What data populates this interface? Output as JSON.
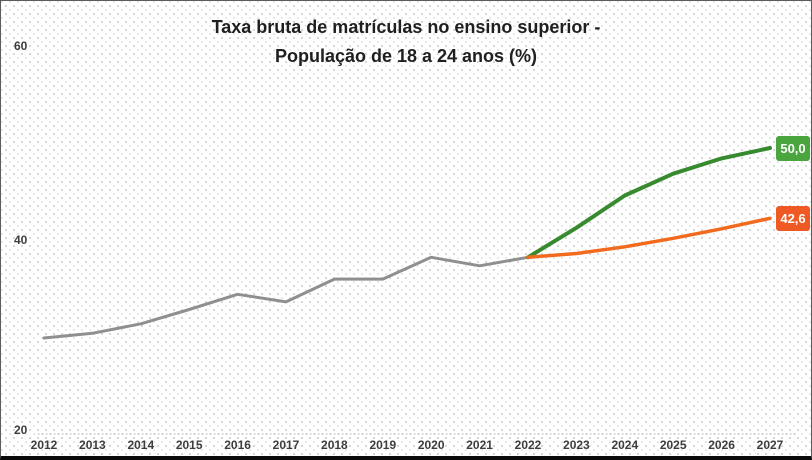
{
  "title": {
    "line1": "Taxa bruta de matrículas no ensino superior -",
    "line2": "População de 18 a 24 anos (%)"
  },
  "colors": {
    "observed_line": "#8f8f8f",
    "goal_line": "#388a2f",
    "goal_label_bg": "#4ba53f",
    "trend_line": "#f26a1e",
    "trend_label_bg": "#ef5a24",
    "baseline_dots": "#b0b0b0",
    "tick_text": "#3d3d3d",
    "title_text": "#1f1f1f"
  },
  "chart_data": {
    "type": "line",
    "title": "Taxa bruta de matrículas no ensino superior - População de 18 a 24 anos (%)",
    "xlabel": "",
    "ylabel": "",
    "x_ticks": [
      2012,
      2013,
      2014,
      2015,
      2016,
      2017,
      2018,
      2019,
      2020,
      2021,
      2022,
      2023,
      2024,
      2025,
      2026,
      2027
    ],
    "y_ticks": [
      20,
      40,
      60
    ],
    "ylim": [
      20,
      62
    ],
    "grid": "single dotted baseline at y=20 only",
    "legend_position": "none",
    "series": [
      {
        "name": "observado",
        "color": "#8f8f8f",
        "width": 3,
        "x": [
          2012,
          2013,
          2014,
          2015,
          2016,
          2017,
          2018,
          2019,
          2020,
          2021,
          2022
        ],
        "values": [
          30.0,
          30.5,
          31.5,
          33.0,
          34.6,
          33.8,
          36.2,
          36.2,
          38.5,
          37.6,
          38.5
        ],
        "end_label": null
      },
      {
        "name": "meta-50",
        "color": "#388a2f",
        "width": 4,
        "x": [
          2022,
          2023,
          2024,
          2025,
          2026,
          2027
        ],
        "values": [
          38.5,
          41.6,
          45.0,
          47.3,
          48.9,
          50.0
        ],
        "end_label": "50,0",
        "end_label_bg": "#4ba53f"
      },
      {
        "name": "projecao-tendencia",
        "color": "#f26a1e",
        "width": 3.5,
        "x": [
          2022,
          2023,
          2024,
          2025,
          2026,
          2027
        ],
        "values": [
          38.5,
          38.9,
          39.6,
          40.5,
          41.5,
          42.6
        ],
        "end_label": "42,6",
        "end_label_bg": "#ef5a24"
      }
    ]
  }
}
